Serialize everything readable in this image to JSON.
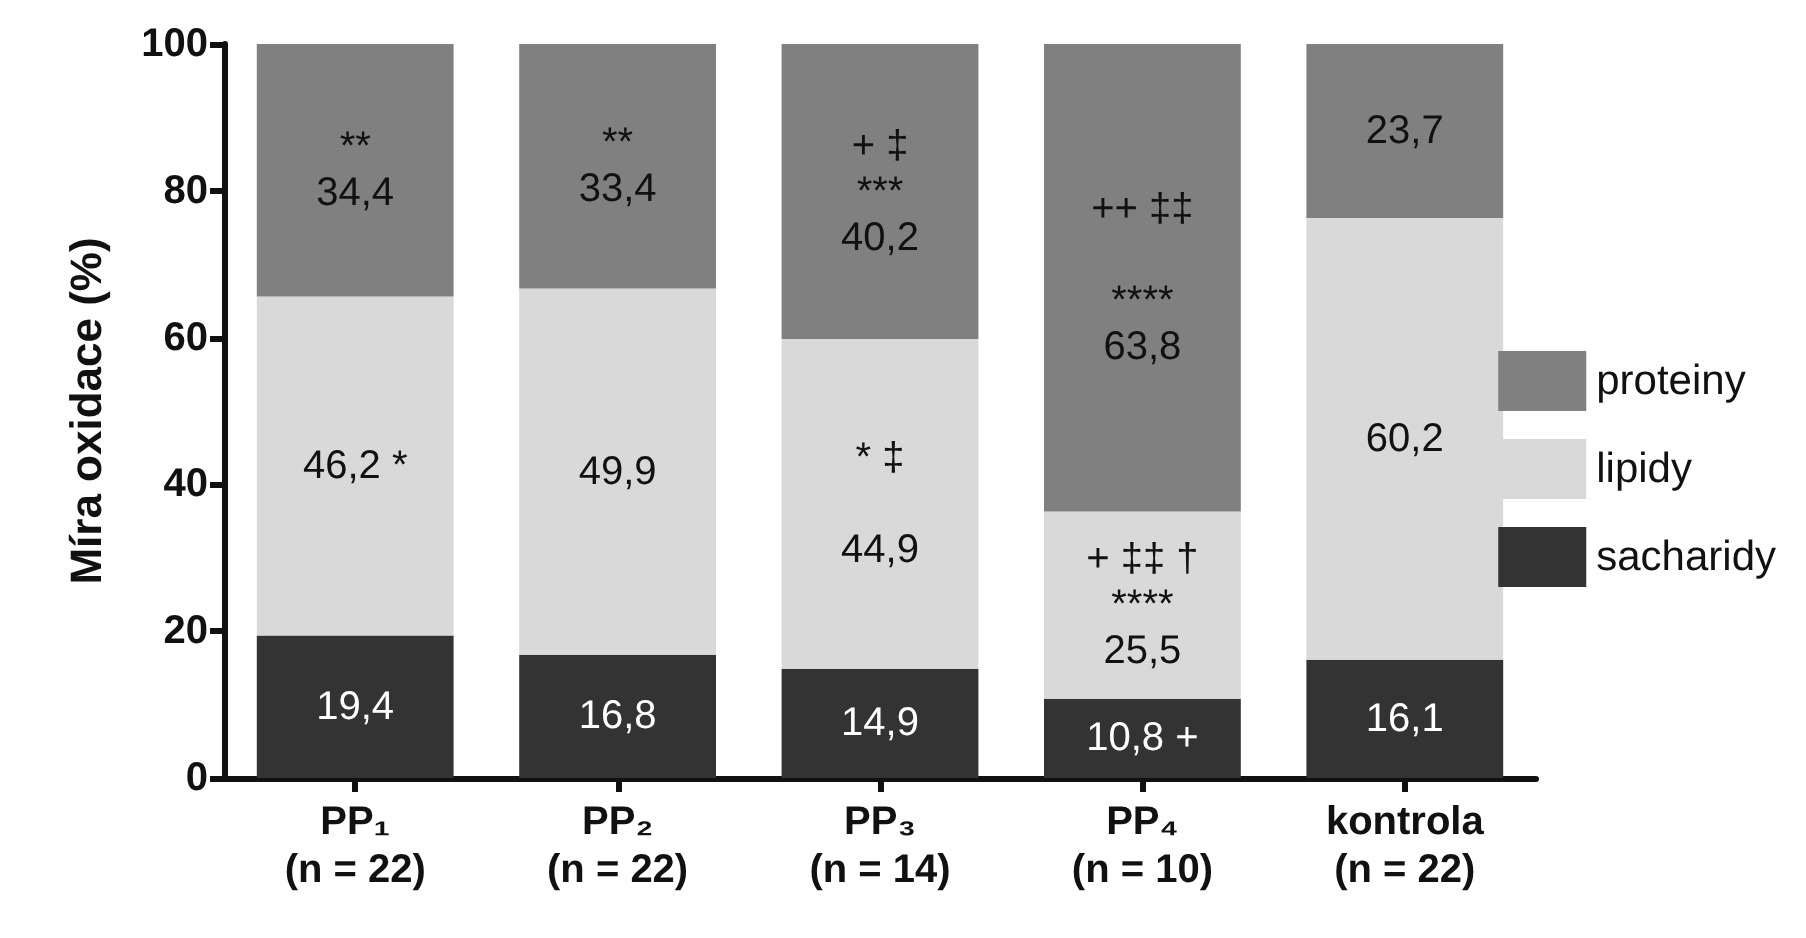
{
  "chart_data": {
    "type": "bar",
    "stacked": true,
    "ylabel": "Míra oxidace (%)",
    "categories": [
      "PP₁\n(n = 22)",
      "PP₂\n(n = 22)",
      "PP₃\n(n = 14)",
      "PP₄\n(n = 10)",
      "kontrola\n(n = 22)"
    ],
    "series": [
      {
        "name": "sacharidy",
        "color": "#333333",
        "values": [
          19.4,
          16.8,
          14.9,
          10.8,
          16.1
        ],
        "value_labels": [
          "19,4",
          "16,8",
          "14,9",
          "10,8 +",
          "16,1"
        ]
      },
      {
        "name": "lipidy",
        "color": "#d9d9d9",
        "values": [
          46.2,
          49.9,
          44.9,
          25.5,
          60.2
        ],
        "value_labels": [
          "46,2 *",
          "49,9",
          "* ‡\n\n44,9",
          "+ ‡‡ †\n****\n25,5",
          "60,2"
        ]
      },
      {
        "name": "proteiny",
        "color": "#808080",
        "values": [
          34.4,
          33.4,
          40.2,
          63.8,
          23.7
        ],
        "value_labels": [
          "**\n34,4",
          "**\n33,4",
          "+ ‡\n***\n40,2",
          "++ ‡‡\n\n****\n63,8",
          "23,7"
        ]
      }
    ],
    "ylim": [
      0,
      100
    ],
    "yticks": [
      0,
      20,
      40,
      60,
      80,
      100
    ],
    "grid": false,
    "legend": "right"
  }
}
